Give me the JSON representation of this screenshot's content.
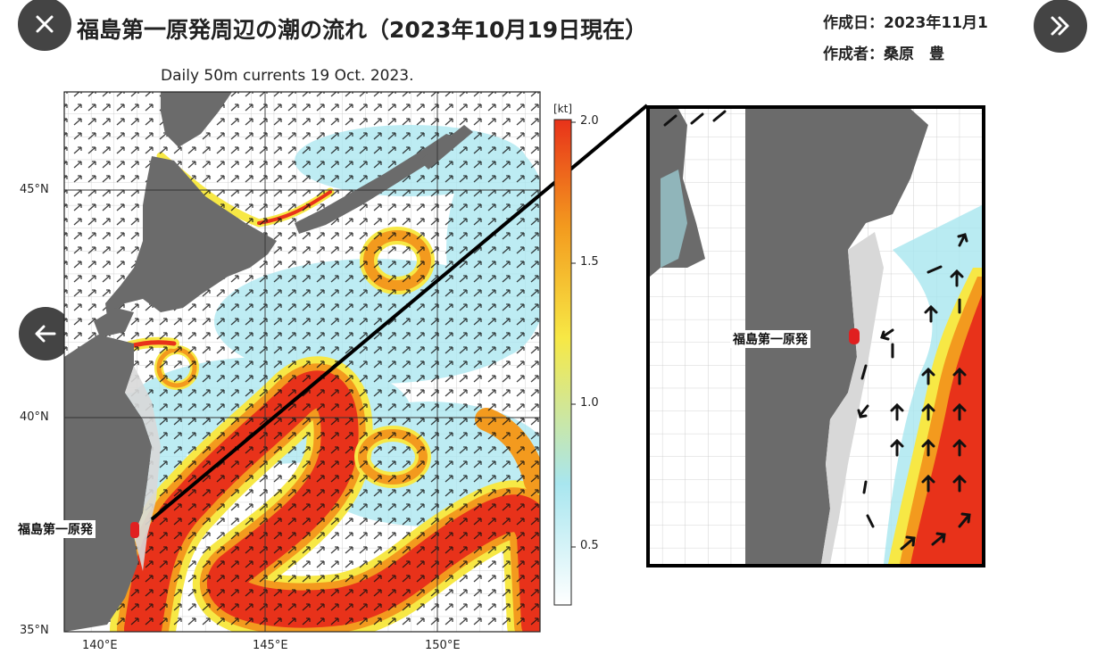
{
  "header": {
    "title": "福島第一原発周辺の潮の流れ（2023年10月19日現在）",
    "created_date": "作成日：2023年11月1",
    "author": "作成者：桑原　豊"
  },
  "nav": {
    "close_icon": "close-icon",
    "next_icon": "double-chevron-right-icon",
    "prev_icon": "arrow-left-icon"
  },
  "map": {
    "subtitle": "Daily 50m currents 19 Oct. 2023.",
    "lat_labels": [
      "45°N",
      "40°N",
      "35°N"
    ],
    "lon_labels": [
      "140°E",
      "145°E",
      "150°E"
    ],
    "site_label": "福島第一原発"
  },
  "colorbar": {
    "unit": "[kt]",
    "ticks": [
      "2.0",
      "1.5",
      "1.0",
      "0.5"
    ],
    "colors": [
      "#ffffff",
      "#a8e6ef",
      "#f7e845",
      "#f39a1e",
      "#e8321a"
    ]
  },
  "inset": {
    "site_label": "福島第一原発"
  },
  "colors": {
    "land": "#6b6b6b",
    "shelf": "#d8d8d8",
    "current_strong": "#e8321a",
    "current_mid": "#f39a1e",
    "current_weak": "#f7e845",
    "current_slow": "#a8e6ef",
    "marker": "#e02020"
  }
}
